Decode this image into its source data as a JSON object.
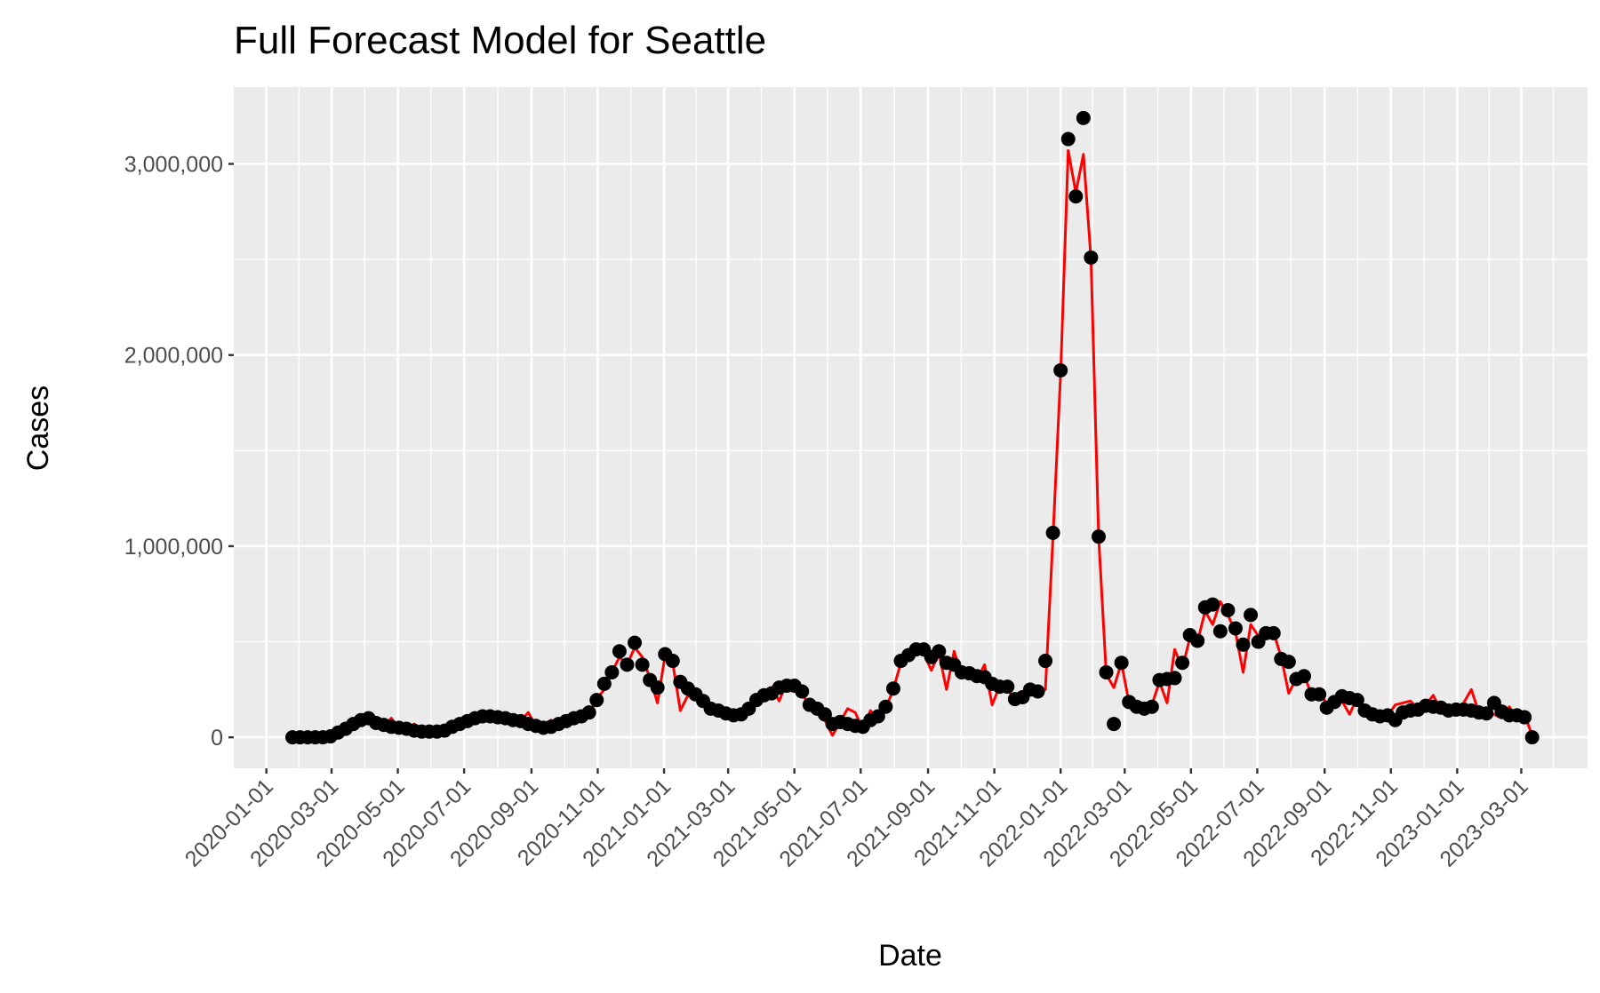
{
  "chart_data": {
    "type": "line",
    "title": "Full Forecast Model for Seattle",
    "xlabel": "Date",
    "ylabel": "Cases",
    "x": [
      "2020-01-25",
      "2020-02-01",
      "2020-02-08",
      "2020-02-15",
      "2020-02-22",
      "2020-02-29",
      "2020-03-07",
      "2020-03-14",
      "2020-03-21",
      "2020-03-28",
      "2020-04-04",
      "2020-04-11",
      "2020-04-18",
      "2020-04-25",
      "2020-05-02",
      "2020-05-09",
      "2020-05-16",
      "2020-05-23",
      "2020-05-30",
      "2020-06-06",
      "2020-06-13",
      "2020-06-20",
      "2020-06-27",
      "2020-07-04",
      "2020-07-11",
      "2020-07-18",
      "2020-07-25",
      "2020-08-01",
      "2020-08-08",
      "2020-08-15",
      "2020-08-22",
      "2020-08-29",
      "2020-09-05",
      "2020-09-12",
      "2020-09-19",
      "2020-09-26",
      "2020-10-03",
      "2020-10-10",
      "2020-10-17",
      "2020-10-24",
      "2020-10-31",
      "2020-11-07",
      "2020-11-14",
      "2020-11-21",
      "2020-11-28",
      "2020-12-05",
      "2020-12-12",
      "2020-12-19",
      "2020-12-26",
      "2021-01-02",
      "2021-01-09",
      "2021-01-16",
      "2021-01-23",
      "2021-01-30",
      "2021-02-06",
      "2021-02-13",
      "2021-02-20",
      "2021-02-27",
      "2021-03-06",
      "2021-03-13",
      "2021-03-20",
      "2021-03-27",
      "2021-04-03",
      "2021-04-10",
      "2021-04-17",
      "2021-04-24",
      "2021-05-01",
      "2021-05-08",
      "2021-05-15",
      "2021-05-22",
      "2021-05-29",
      "2021-06-05",
      "2021-06-12",
      "2021-06-19",
      "2021-06-26",
      "2021-07-03",
      "2021-07-10",
      "2021-07-17",
      "2021-07-24",
      "2021-07-31",
      "2021-08-07",
      "2021-08-14",
      "2021-08-21",
      "2021-08-28",
      "2021-09-04",
      "2021-09-11",
      "2021-09-18",
      "2021-09-25",
      "2021-10-02",
      "2021-10-09",
      "2021-10-16",
      "2021-10-23",
      "2021-10-30",
      "2021-11-06",
      "2021-11-13",
      "2021-11-20",
      "2021-11-27",
      "2021-12-04",
      "2021-12-11",
      "2021-12-18",
      "2021-12-25",
      "2022-01-01",
      "2022-01-08",
      "2022-01-15",
      "2022-01-22",
      "2022-01-29",
      "2022-02-05",
      "2022-02-12",
      "2022-02-19",
      "2022-02-26",
      "2022-03-05",
      "2022-03-12",
      "2022-03-19",
      "2022-03-26",
      "2022-04-02",
      "2022-04-09",
      "2022-04-16",
      "2022-04-23",
      "2022-04-30",
      "2022-05-07",
      "2022-05-14",
      "2022-05-21",
      "2022-05-28",
      "2022-06-04",
      "2022-06-11",
      "2022-06-18",
      "2022-06-25",
      "2022-07-02",
      "2022-07-09",
      "2022-07-16",
      "2022-07-23",
      "2022-07-30",
      "2022-08-06",
      "2022-08-13",
      "2022-08-20",
      "2022-08-27",
      "2022-09-03",
      "2022-09-10",
      "2022-09-17",
      "2022-09-24",
      "2022-10-01",
      "2022-10-08",
      "2022-10-15",
      "2022-10-22",
      "2022-10-29",
      "2022-11-05",
      "2022-11-12",
      "2022-11-19",
      "2022-11-26",
      "2022-12-03",
      "2022-12-10",
      "2022-12-17",
      "2022-12-24",
      "2022-12-31",
      "2023-01-07",
      "2023-01-14",
      "2023-01-21",
      "2023-01-28",
      "2023-02-04",
      "2023-02-11",
      "2023-02-18",
      "2023-02-25",
      "2023-03-04",
      "2023-03-11"
    ],
    "series": [
      {
        "mark": "line",
        "color": "#ff0000",
        "values": [
          0,
          0,
          0,
          0,
          0,
          5000,
          20000,
          45000,
          70000,
          95000,
          95000,
          70000,
          60000,
          100000,
          45000,
          40000,
          70000,
          30000,
          35000,
          30000,
          35000,
          50000,
          75000,
          60000,
          95000,
          110000,
          105000,
          100000,
          120000,
          90000,
          85000,
          130000,
          60000,
          45000,
          90000,
          70000,
          85000,
          95000,
          110000,
          120000,
          200000,
          250000,
          340000,
          420000,
          380000,
          470000,
          420000,
          310000,
          180000,
          430000,
          390000,
          140000,
          220000,
          210000,
          170000,
          140000,
          150000,
          120000,
          110000,
          125000,
          140000,
          190000,
          230000,
          260000,
          190000,
          290000,
          250000,
          230000,
          160000,
          130000,
          90000,
          10000,
          80000,
          150000,
          130000,
          40000,
          140000,
          90000,
          150000,
          250000,
          390000,
          420000,
          460000,
          440000,
          350000,
          440000,
          250000,
          450000,
          320000,
          350000,
          300000,
          380000,
          170000,
          270000,
          250000,
          200000,
          200000,
          260000,
          230000,
          250000,
          1050000,
          1900000,
          3070000,
          2850000,
          3050000,
          2500000,
          1050000,
          330000,
          260000,
          390000,
          180000,
          160000,
          170000,
          170000,
          290000,
          180000,
          460000,
          360000,
          520000,
          500000,
          660000,
          590000,
          710000,
          640000,
          550000,
          340000,
          590000,
          530000,
          520000,
          550000,
          420000,
          230000,
          310000,
          330000,
          220000,
          250000,
          170000,
          170000,
          190000,
          120000,
          210000,
          150000,
          110000,
          130000,
          110000,
          170000,
          180000,
          190000,
          150000,
          170000,
          220000,
          140000,
          160000,
          150000,
          180000,
          250000,
          130000,
          130000,
          120000,
          100000,
          160000,
          100000,
          120000,
          10000
        ]
      },
      {
        "mark": "point",
        "color": "#000000",
        "values": [
          0,
          0,
          0,
          0,
          0,
          5000,
          25000,
          45000,
          70000,
          90000,
          100000,
          75000,
          65000,
          55000,
          50000,
          45000,
          35000,
          30000,
          30000,
          30000,
          35000,
          55000,
          70000,
          85000,
          100000,
          110000,
          110000,
          105000,
          100000,
          90000,
          85000,
          70000,
          60000,
          50000,
          55000,
          70000,
          85000,
          100000,
          110000,
          130000,
          195000,
          280000,
          340000,
          450000,
          380000,
          495000,
          380000,
          300000,
          260000,
          435000,
          400000,
          290000,
          255000,
          225000,
          190000,
          150000,
          140000,
          125000,
          115000,
          120000,
          150000,
          195000,
          220000,
          230000,
          260000,
          270000,
          270000,
          240000,
          170000,
          150000,
          120000,
          70000,
          80000,
          70000,
          60000,
          55000,
          90000,
          110000,
          160000,
          255000,
          400000,
          430000,
          460000,
          460000,
          420000,
          450000,
          390000,
          380000,
          340000,
          335000,
          320000,
          315000,
          280000,
          265000,
          265000,
          200000,
          210000,
          250000,
          240000,
          400000,
          1070000,
          1920000,
          3130000,
          2830000,
          3240000,
          2510000,
          1050000,
          340000,
          70000,
          390000,
          185000,
          160000,
          150000,
          160000,
          300000,
          305000,
          310000,
          390000,
          535000,
          505000,
          680000,
          695000,
          555000,
          665000,
          570000,
          485000,
          640000,
          500000,
          545000,
          545000,
          410000,
          395000,
          305000,
          320000,
          225000,
          225000,
          155000,
          185000,
          215000,
          205000,
          195000,
          140000,
          120000,
          110000,
          115000,
          90000,
          130000,
          140000,
          145000,
          165000,
          160000,
          155000,
          140000,
          145000,
          145000,
          140000,
          130000,
          125000,
          180000,
          135000,
          115000,
          115000,
          105000,
          0
        ]
      }
    ],
    "xlim": [
      "2019-12-02",
      "2023-05-01"
    ],
    "xticks": [
      "2020-01-01",
      "2020-03-01",
      "2020-05-01",
      "2020-07-01",
      "2020-09-01",
      "2020-11-01",
      "2021-01-01",
      "2021-03-01",
      "2021-05-01",
      "2021-07-01",
      "2021-09-01",
      "2021-11-01",
      "2022-01-01",
      "2022-03-01",
      "2022-05-01",
      "2022-07-01",
      "2022-09-01",
      "2022-11-01",
      "2023-01-01",
      "2023-03-01"
    ],
    "ylim": [
      -162000,
      3402000
    ],
    "yticks": [
      0,
      {
        "value": 1000000,
        "label": "1,000,000"
      },
      {
        "value": 2000000,
        "label": "2,000,000"
      },
      {
        "value": 3000000,
        "label": "3,000,000"
      }
    ],
    "grid": true
  }
}
